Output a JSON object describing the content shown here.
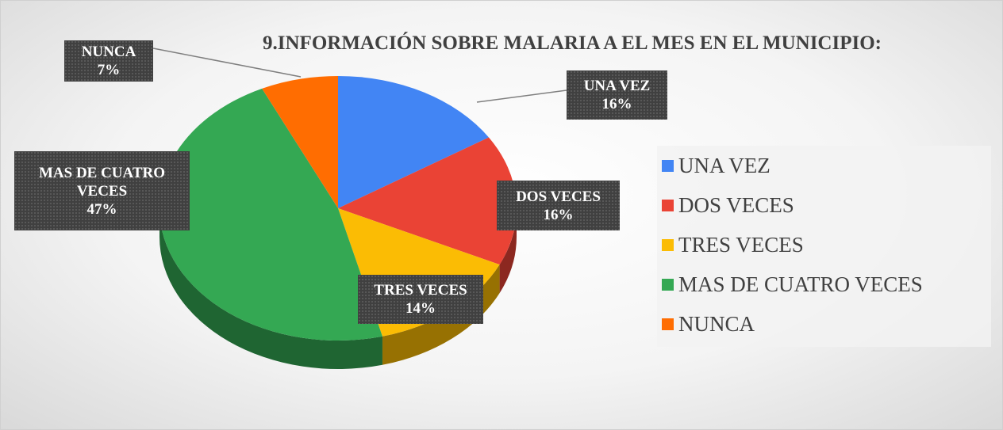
{
  "chart_data": {
    "type": "pie",
    "title": "9.INFORMACIÓN SOBRE MALARIA A EL MES EN EL MUNICIPIO:",
    "categories": [
      "UNA VEZ",
      "DOS VECES",
      "TRES VECES",
      "MAS DE CUATRO VECES",
      "NUNCA"
    ],
    "values": [
      16,
      16,
      14,
      47,
      7
    ],
    "value_labels": [
      "16%",
      "16%",
      "14%",
      "47%",
      "7%"
    ],
    "colors": [
      "#4285f4",
      "#ea4335",
      "#fbbc04",
      "#34a853",
      "#ff6d01"
    ],
    "legend": "right"
  }
}
